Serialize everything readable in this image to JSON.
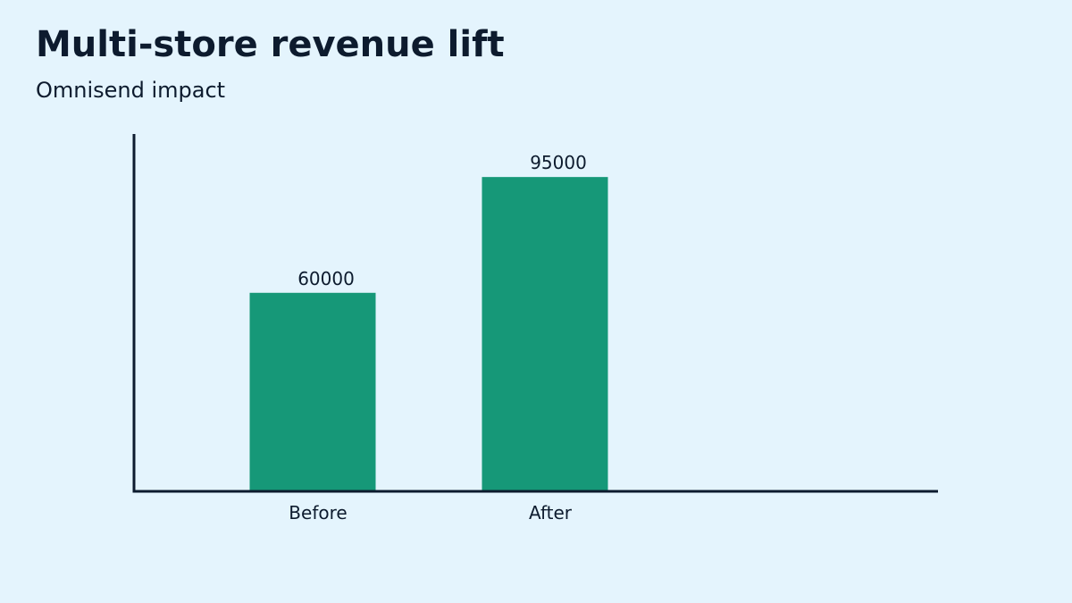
{
  "chart_data": {
    "type": "bar",
    "title": "Multi-store revenue lift",
    "subtitle": "Omnisend impact",
    "categories": [
      "Before",
      "After"
    ],
    "values": [
      60000,
      95000
    ],
    "value_labels": [
      "60000",
      "95000"
    ],
    "xlabel": "",
    "ylabel": "",
    "grid": false,
    "legend": "none",
    "ylim": [
      0,
      108000
    ],
    "colors": {
      "bar": "#169878",
      "axis": "#0d1b2e",
      "background": "#e4f4fd",
      "text": "#0d1b2e"
    }
  }
}
